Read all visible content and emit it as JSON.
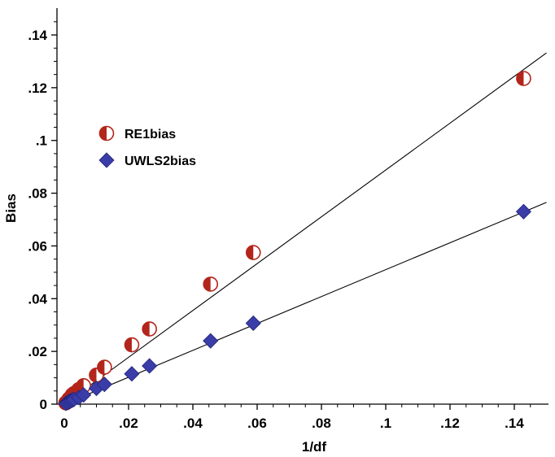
{
  "chart_data": {
    "type": "scatter",
    "xlabel": "1/df",
    "ylabel": "Bias",
    "xlim": [
      -0.003,
      0.15
    ],
    "ylim": [
      0,
      0.15
    ],
    "x_ticks": [
      0,
      0.02,
      0.04,
      0.06,
      0.08,
      0.1,
      0.12,
      0.14
    ],
    "x_tick_labels": [
      "0",
      ".02",
      ".04",
      ".06",
      ".08",
      ".1",
      ".12",
      ".14"
    ],
    "y_ticks": [
      0,
      0.02,
      0.04,
      0.06,
      0.08,
      0.1,
      0.12,
      0.14
    ],
    "y_tick_labels": [
      "0",
      ".02",
      ".04",
      ".06",
      ".08",
      ".1",
      ".12",
      ".14"
    ],
    "grid": false,
    "legend_position": "upper-left",
    "series": [
      {
        "name": "RE1bias",
        "marker": "half-filled-circle",
        "color": "#b3251b",
        "x": [
          0.0005,
          0.001,
          0.0015,
          0.002,
          0.0025,
          0.003,
          0.0045,
          0.006,
          0.01,
          0.0125,
          0.021,
          0.0265,
          0.0455,
          0.0588,
          0.1429
        ],
        "y": [
          0.0005,
          0.001,
          0.002,
          0.0025,
          0.0035,
          0.004,
          0.0055,
          0.007,
          0.011,
          0.014,
          0.0225,
          0.0285,
          0.0455,
          0.0575,
          0.1235
        ],
        "fit_slope": 0.888
      },
      {
        "name": "UWLS2bias",
        "marker": "diamond",
        "color": "#3a3da8",
        "x": [
          0.0005,
          0.001,
          0.0015,
          0.002,
          0.0025,
          0.003,
          0.0045,
          0.006,
          0.01,
          0.0125,
          0.021,
          0.0265,
          0.0455,
          0.0588,
          0.1429
        ],
        "y": [
          0.0003,
          0.0006,
          0.001,
          0.0013,
          0.0015,
          0.0018,
          0.0025,
          0.0035,
          0.006,
          0.0075,
          0.0115,
          0.0145,
          0.024,
          0.0307,
          0.073
        ],
        "fit_slope": 0.51
      }
    ]
  }
}
